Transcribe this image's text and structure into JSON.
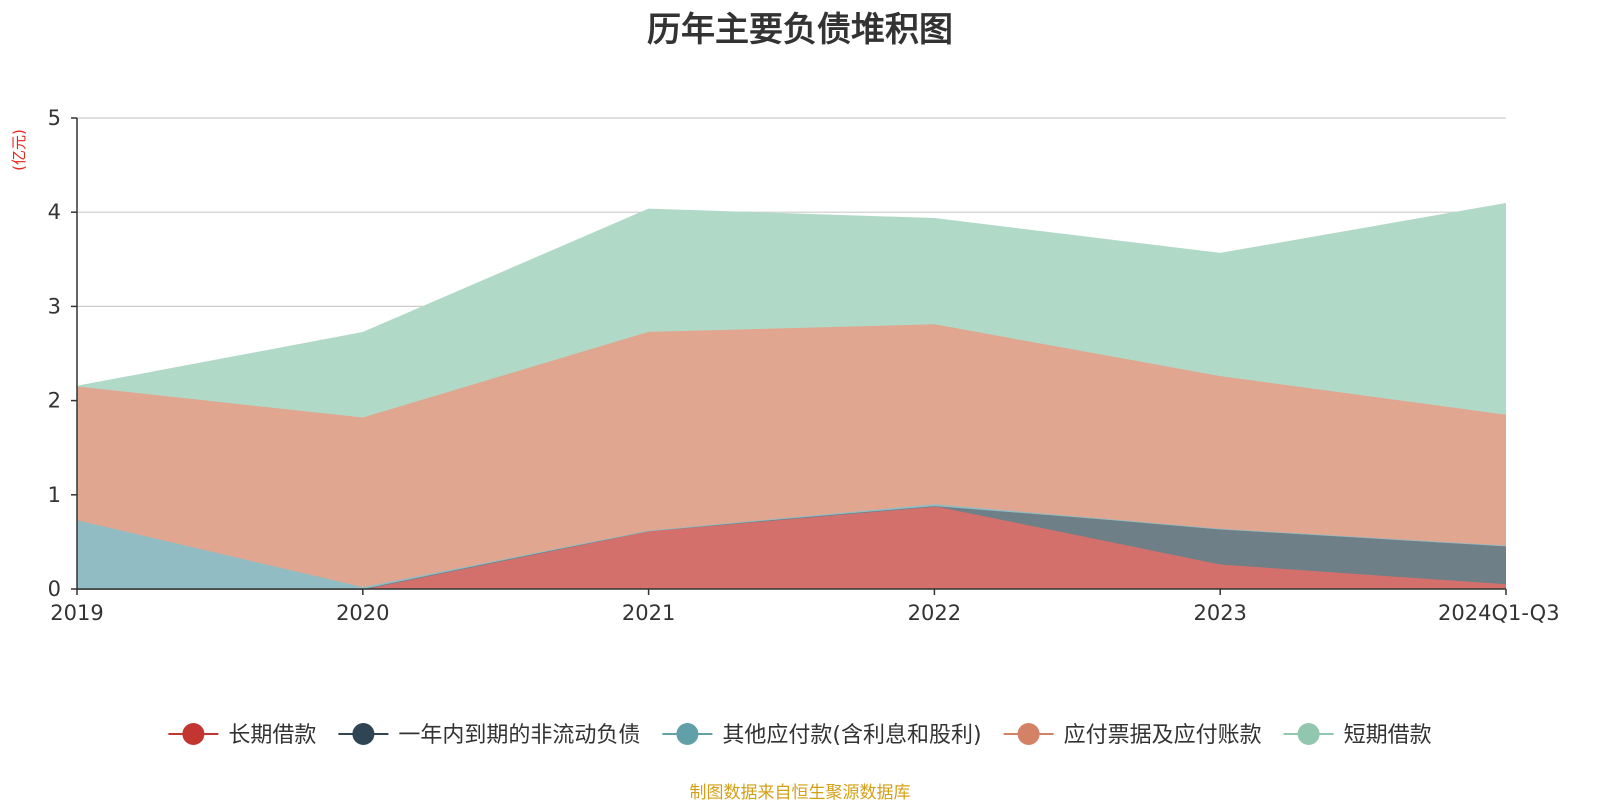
{
  "chart_data": {
    "type": "area",
    "stacked": true,
    "title": "历年主要负债堆积图",
    "unit_label": "(亿元)",
    "x": [
      "2019",
      "2020",
      "2021",
      "2022",
      "2023",
      "2024Q1-Q3"
    ],
    "ylim": [
      0,
      5
    ],
    "yticks": [
      "0",
      "1",
      "2",
      "3",
      "4",
      "5"
    ],
    "grid": true,
    "legend_position": "bottom",
    "series": [
      {
        "name": "长期借款",
        "color": "#c23531",
        "fill": "#d4706c",
        "values": [
          0,
          0,
          0.62,
          0.88,
          0.26,
          0.05
        ]
      },
      {
        "name": "一年内到期的非流动负债",
        "color": "#2f4554",
        "fill": "#6e7f88",
        "values": [
          0,
          0,
          0,
          0,
          0.38,
          0.41
        ]
      },
      {
        "name": "其他应付款(含利息和股利)",
        "color": "#61a0a8",
        "fill": "#92bcc3",
        "values": [
          0.73,
          0.02,
          0,
          0.02,
          0,
          0
        ]
      },
      {
        "name": "应付票据及应付账款",
        "color": "#d48265",
        "fill": "#e0a690",
        "values": [
          1.42,
          1.8,
          2.11,
          1.91,
          1.62,
          1.39
        ]
      },
      {
        "name": "短期借款",
        "color": "#91c7ae",
        "fill": "#b1d9c7",
        "values": [
          0,
          0.9,
          1.3,
          1.12,
          1.3,
          2.24
        ]
      }
    ]
  },
  "footer": {
    "source": "制图数据来自恒生聚源数据库"
  }
}
